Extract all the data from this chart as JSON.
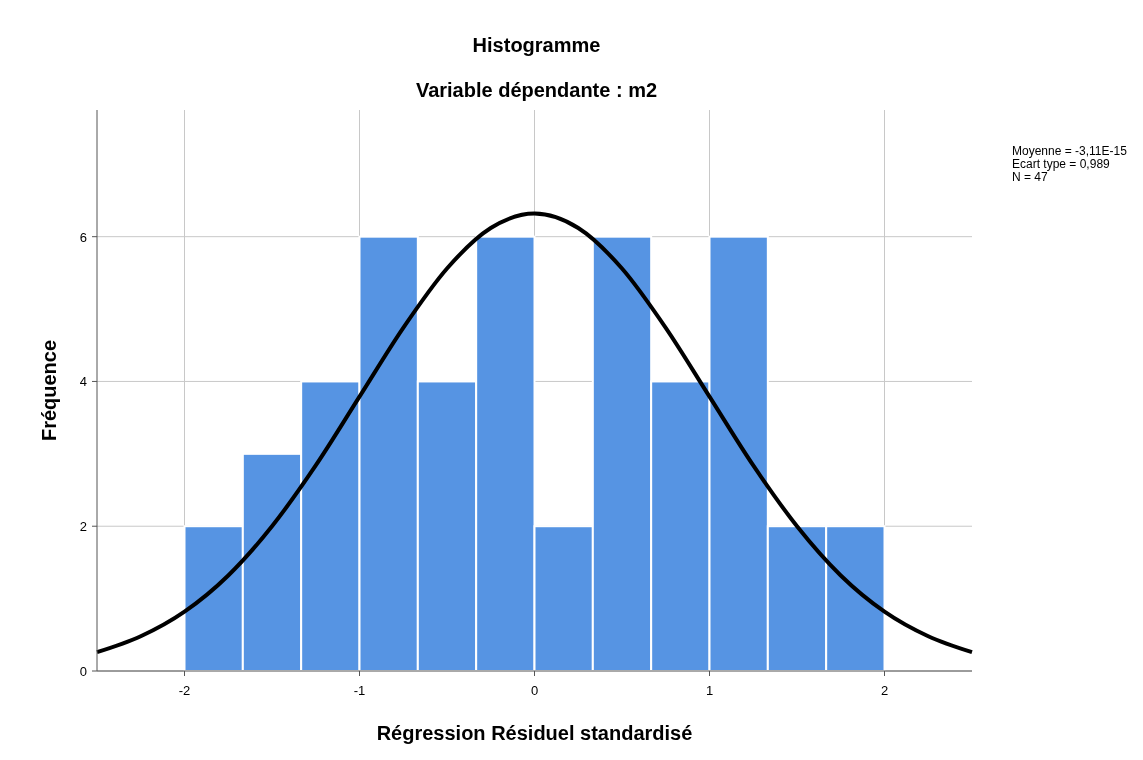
{
  "chart_data": {
    "type": "histogram",
    "title": "Histogramme",
    "subtitle": "Variable dépendante : m2",
    "xlabel": "Régression Résiduel standardisé",
    "ylabel": "Fréquence",
    "bins": [
      -2,
      -1.6667,
      -1.3333,
      -1,
      -0.6667,
      -0.3333,
      0,
      0.3333,
      0.6667,
      1,
      1.3333,
      1.6667,
      2
    ],
    "values": [
      2,
      3,
      4,
      6,
      4,
      6,
      2,
      6,
      4,
      6,
      2,
      2
    ],
    "color": "#5694e3",
    "series": [
      {
        "type": "line",
        "color": "#000000",
        "x": [
          -2.5,
          -2.25,
          -2,
          -1.75,
          -1.5,
          -1.25,
          -1,
          -0.75,
          -0.5,
          -0.25,
          0,
          0.25,
          0.5,
          0.75,
          1,
          1.25,
          1.5,
          1.75,
          2,
          2.25,
          2.5
        ],
        "values": [
          0.26,
          0.48,
          0.82,
          1.32,
          2.0,
          2.84,
          3.79,
          4.74,
          5.56,
          6.12,
          6.32,
          6.12,
          5.56,
          4.74,
          3.79,
          2.84,
          2.0,
          1.32,
          0.82,
          0.48,
          0.26
        ]
      }
    ],
    "xlim": [
      -2.5,
      2.5
    ],
    "xticks": [
      -2,
      -1,
      0,
      1,
      2
    ],
    "ylim": [
      0,
      7.75
    ],
    "yticks": [
      0,
      2,
      4,
      6
    ],
    "grid": true,
    "marker": "none",
    "line_style": "solid",
    "annotations": [
      "Moyenne = -3,11E-15",
      "Ecart type = 0,989",
      "N = 47"
    ]
  }
}
